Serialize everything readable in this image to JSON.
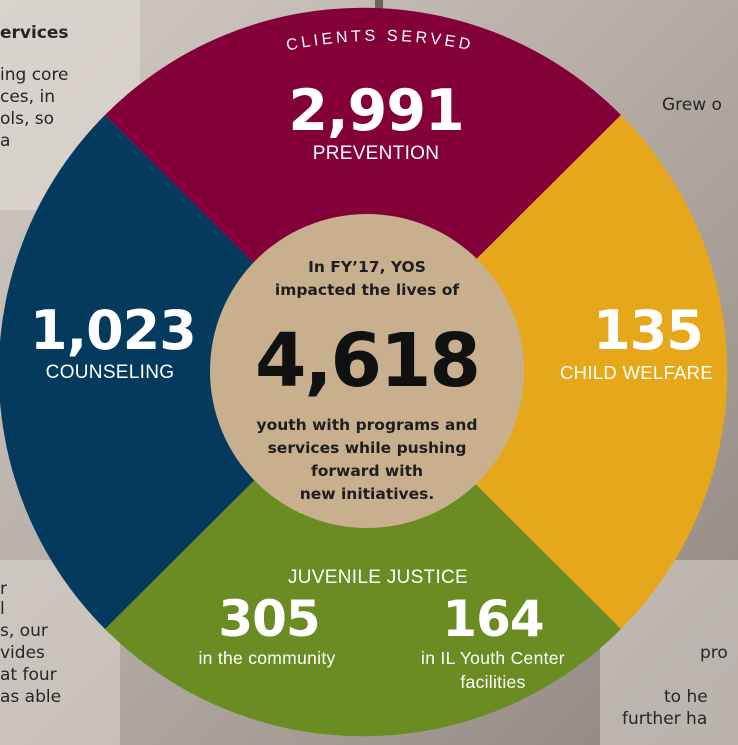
{
  "colors": {
    "prevention": "#830039",
    "counseling": "#033a5e",
    "child_welfare": "#e7a71a",
    "juvenile_justice": "#6b8c23",
    "center": "#c8b08e",
    "background": "#b4aca4"
  },
  "left_text": {
    "heading": "ervices",
    "lines": [
      "ing core",
      "ces, in",
      "ols, so",
      "a"
    ],
    "lower_lines": [
      "r",
      "l",
      "s, our",
      "vides",
      "at four",
      "as able"
    ]
  },
  "right_text": {
    "top_line": "Grew o",
    "lower_lines": [
      "pro",
      "to he",
      "further ha"
    ]
  },
  "wheel": {
    "arc_label": "CLIENTS SERVED",
    "prevention": {
      "value": "2,991",
      "label": "PREVENTION"
    },
    "counseling": {
      "value": "1,023",
      "label": "COUNSELING"
    },
    "child_welfare": {
      "value": "135",
      "label": "CHILD WELFARE"
    },
    "juvenile_justice": {
      "title": "JUVENILE JUSTICE",
      "community_value": "305",
      "community_label": "in the community",
      "facility_value": "164",
      "facility_label_1": "in IL Youth Center",
      "facility_label_2": "facilities"
    },
    "center": {
      "intro_1": "In FY’17, YOS",
      "intro_2": "impacted the lives of",
      "total": "4,618",
      "outro_1": "youth with programs and",
      "outro_2": "services while pushing",
      "outro_3": "forward with",
      "outro_4": "new initiatives."
    }
  }
}
